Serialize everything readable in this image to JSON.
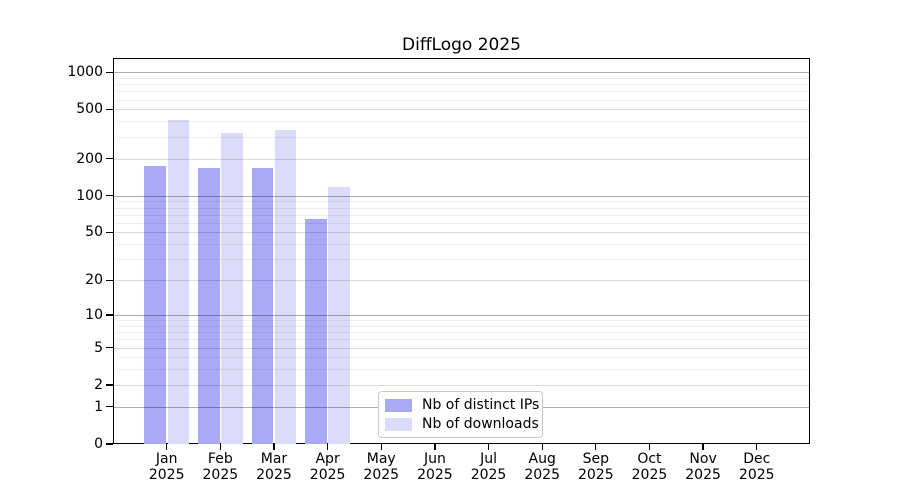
{
  "chart_data": {
    "type": "bar",
    "title": "DiffLogo 2025",
    "xlabel": "",
    "ylabel": "",
    "yscale": "log10(1+x)",
    "yticks": [
      0,
      1,
      2,
      5,
      10,
      20,
      50,
      100,
      200,
      500,
      1000
    ],
    "ylim": [
      0,
      1300
    ],
    "grid": "horizontal, major and minor, drawn over bars",
    "legend_position": "inside bottom-center",
    "categories": [
      {
        "month": "Jan",
        "year": "2025"
      },
      {
        "month": "Feb",
        "year": "2025"
      },
      {
        "month": "Mar",
        "year": "2025"
      },
      {
        "month": "Apr",
        "year": "2025"
      },
      {
        "month": "May",
        "year": "2025"
      },
      {
        "month": "Jun",
        "year": "2025"
      },
      {
        "month": "Jul",
        "year": "2025"
      },
      {
        "month": "Aug",
        "year": "2025"
      },
      {
        "month": "Sep",
        "year": "2025"
      },
      {
        "month": "Oct",
        "year": "2025"
      },
      {
        "month": "Nov",
        "year": "2025"
      },
      {
        "month": "Dec",
        "year": "2025"
      }
    ],
    "series": [
      {
        "name": "Nb of distinct IPs",
        "color": "#a9a9f5",
        "values": [
          175,
          169,
          168,
          65,
          null,
          null,
          null,
          null,
          null,
          null,
          null,
          null
        ]
      },
      {
        "name": "Nb of downloads",
        "color": "#dcdcfa",
        "values": [
          412,
          324,
          339,
          118,
          null,
          null,
          null,
          null,
          null,
          null,
          null,
          null
        ]
      }
    ]
  }
}
